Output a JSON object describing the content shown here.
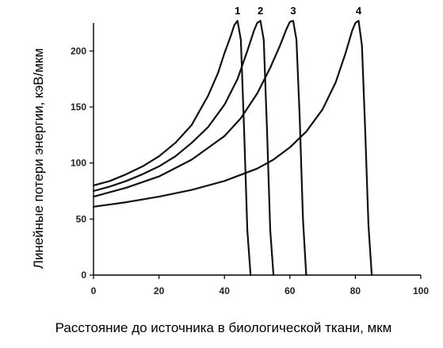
{
  "chart_data": {
    "type": "line",
    "xlabel": "Расстояние до источника в биологической ткани, мкм",
    "ylabel": "Линейные потери энергии, кэВ/мкм",
    "xlim": [
      0,
      100
    ],
    "ylim": [
      0,
      225
    ],
    "xticks": [
      "0",
      "20",
      "40",
      "60",
      "80",
      "100"
    ],
    "yticks": [
      "0",
      "50",
      "100",
      "150",
      "200"
    ],
    "grid": false,
    "series": [
      {
        "name": "1",
        "x": [
          0,
          5,
          10,
          15,
          20,
          25,
          30,
          35,
          38,
          40,
          42,
          43,
          44,
          45,
          46,
          47,
          48
        ],
        "y": [
          80,
          84,
          90,
          97,
          106,
          118,
          134,
          160,
          180,
          198,
          214,
          223,
          227,
          210,
          130,
          40,
          0
        ]
      },
      {
        "name": "2",
        "x": [
          0,
          5,
          10,
          15,
          20,
          25,
          30,
          35,
          40,
          44,
          47,
          49,
          50,
          51,
          52,
          53,
          54,
          55
        ],
        "y": [
          75,
          79,
          84,
          90,
          97,
          106,
          118,
          132,
          152,
          175,
          200,
          218,
          225,
          227,
          210,
          130,
          40,
          0
        ]
      },
      {
        "name": "3",
        "x": [
          0,
          10,
          20,
          30,
          40,
          45,
          50,
          54,
          57,
          59,
          60,
          61,
          62,
          63,
          64,
          65
        ],
        "y": [
          70,
          78,
          88,
          103,
          124,
          140,
          162,
          185,
          205,
          220,
          226,
          227,
          210,
          140,
          50,
          0
        ]
      },
      {
        "name": "4",
        "x": [
          0,
          10,
          20,
          30,
          40,
          50,
          55,
          60,
          65,
          70,
          74,
          77,
          79,
          80,
          81,
          82,
          83,
          84,
          85
        ],
        "y": [
          61,
          65,
          70,
          76,
          84,
          95,
          103,
          114,
          128,
          148,
          172,
          198,
          218,
          225,
          227,
          205,
          130,
          45,
          0
        ]
      }
    ]
  }
}
